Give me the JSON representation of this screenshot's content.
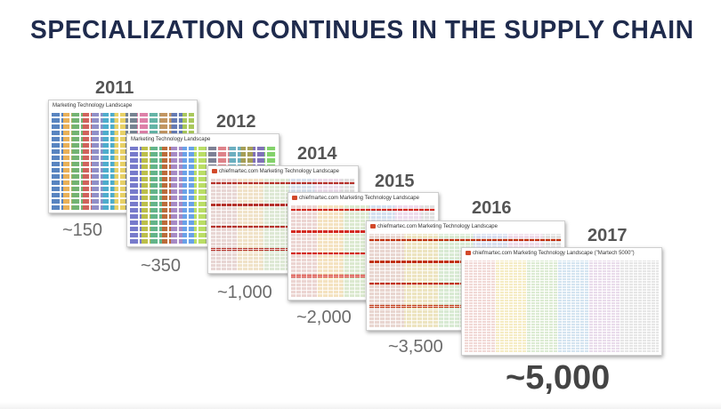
{
  "slide": {
    "title": "SPECIALIZATION CONTINUES IN THE SUPPLY CHAIN"
  },
  "landscapes": [
    {
      "year": "2011",
      "count": "~150",
      "header": "Marketing Technology Landscape",
      "branded": false
    },
    {
      "year": "2012",
      "count": "~350",
      "header": "Marketing Technology Landscape",
      "branded": false
    },
    {
      "year": "2014",
      "count": "~1,000",
      "header": "chiefmartec.com Marketing Technology Landscape",
      "branded": true
    },
    {
      "year": "2015",
      "count": "~2,000",
      "header": "chiefmartec.com Marketing Technology Landscape",
      "branded": true
    },
    {
      "year": "2016",
      "count": "~3,500",
      "header": "chiefmartec.com Marketing Technology Landscape",
      "branded": true
    },
    {
      "year": "2017",
      "count": "~5,000",
      "header": "chiefmartec.com Marketing Technology Landscape (\"Martech 5000\")",
      "branded": true
    }
  ],
  "colors": {
    "title": "#1f2b4d",
    "year": "#555555",
    "count": "#6b6b6b",
    "accent": "#b5322b"
  }
}
